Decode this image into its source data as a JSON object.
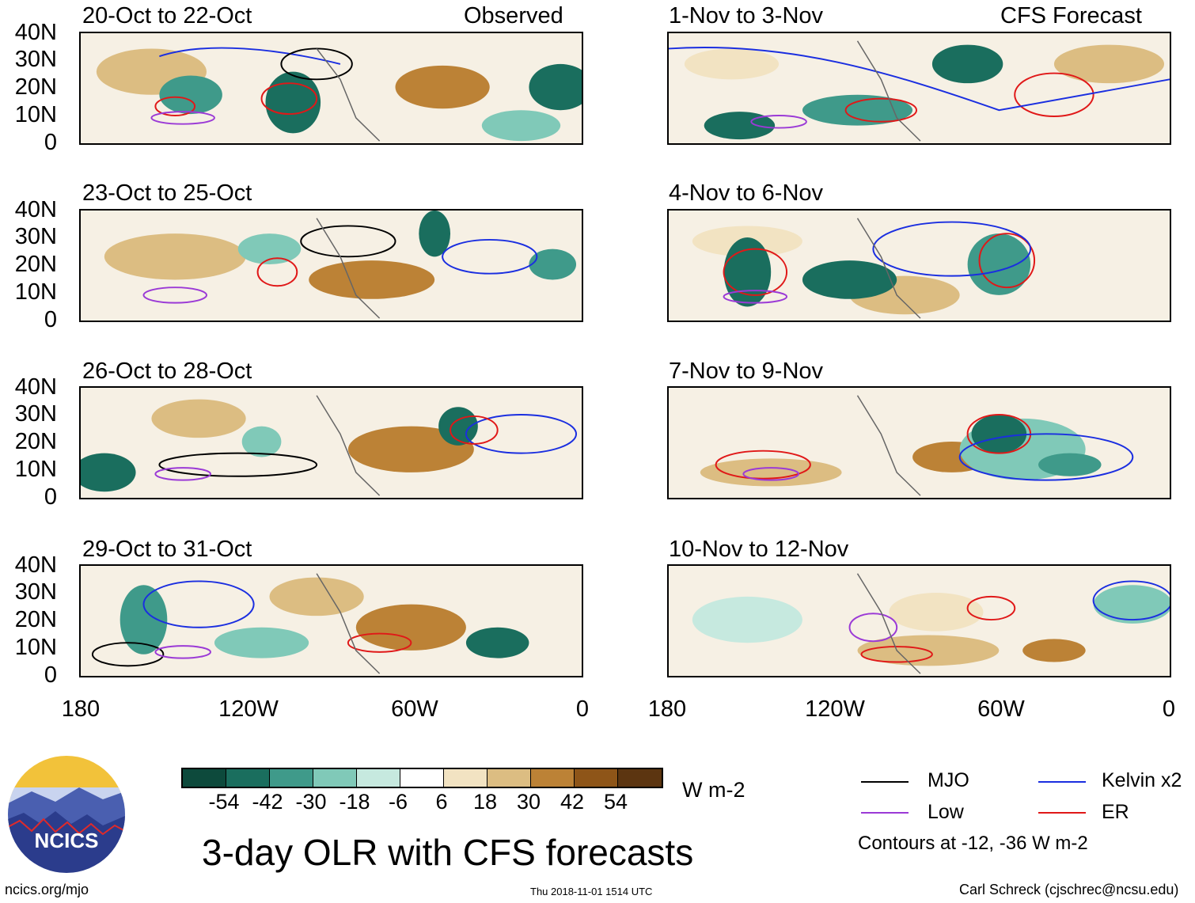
{
  "panels": {
    "left": [
      {
        "title": "20-Oct to 22-Oct",
        "tag": "Observed"
      },
      {
        "title": "23-Oct to 25-Oct",
        "tag": ""
      },
      {
        "title": "26-Oct to 28-Oct",
        "tag": ""
      },
      {
        "title": "29-Oct to 31-Oct",
        "tag": ""
      }
    ],
    "right": [
      {
        "title": "1-Nov to 3-Nov",
        "tag": "CFS Forecast"
      },
      {
        "title": "4-Nov to 6-Nov",
        "tag": ""
      },
      {
        "title": "7-Nov to 9-Nov",
        "tag": ""
      },
      {
        "title": "10-Nov to 12-Nov",
        "tag": ""
      }
    ]
  },
  "y_axis": [
    "40N",
    "30N",
    "20N",
    "10N",
    "0"
  ],
  "x_axis": [
    "180",
    "120W",
    "60W",
    "0"
  ],
  "colorbar": {
    "labels": [
      "-54",
      "-42",
      "-30",
      "-18",
      "-6",
      "6",
      "18",
      "30",
      "42",
      "54"
    ],
    "unit": "W m-2",
    "colors": [
      "#0d4a3c",
      "#1a6e5e",
      "#3f9a8a",
      "#80c9b8",
      "#c6e9df",
      "#ffffff",
      "#f2e3c2",
      "#dcbd82",
      "#bc8236",
      "#8e5518",
      "#5c3510"
    ]
  },
  "legend": {
    "items": [
      {
        "label": "MJO",
        "color": "#000000"
      },
      {
        "label": "Kelvin x2",
        "color": "#1a2ee0"
      },
      {
        "label": "Low",
        "color": "#9b3ad6"
      },
      {
        "label": "ER",
        "color": "#e01818"
      }
    ],
    "note": "Contours at -12, -36 W m-2"
  },
  "logo_text": "NCICS",
  "title": "3-day OLR with CFS forecasts",
  "footer": {
    "left": "ncics.org/mjo",
    "center": "Thu 2018-11-01 1514 UTC",
    "right": "Carl Schreck (cjschrec@ncsu.edu)"
  }
}
